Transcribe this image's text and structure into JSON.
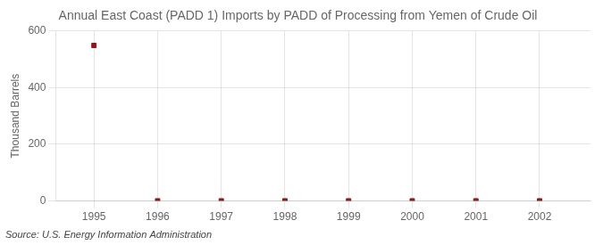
{
  "chart_data": {
    "type": "scatter",
    "title": "Annual East Coast (PADD 1) Imports by PADD of Processing from Yemen of Crude Oil",
    "y_label": "Thousand Barrels",
    "annotations": [
      "Source: U.S. Energy Information Administration"
    ],
    "x": [
      1995,
      1996,
      1997,
      1998,
      1999,
      2000,
      2001,
      2002
    ],
    "values": [
      549,
      0,
      0,
      0,
      0,
      0,
      0,
      0
    ],
    "color": "#8b1a1a",
    "marker": "square",
    "line_style": "none",
    "xlim": [
      1994.4,
      2002.8
    ],
    "xticks": [
      1995,
      1996,
      1997,
      1998,
      1999,
      2000,
      2001,
      2002
    ],
    "ylim": [
      0,
      600
    ],
    "yticks": [
      0,
      200,
      400,
      600
    ],
    "grid": true
  }
}
